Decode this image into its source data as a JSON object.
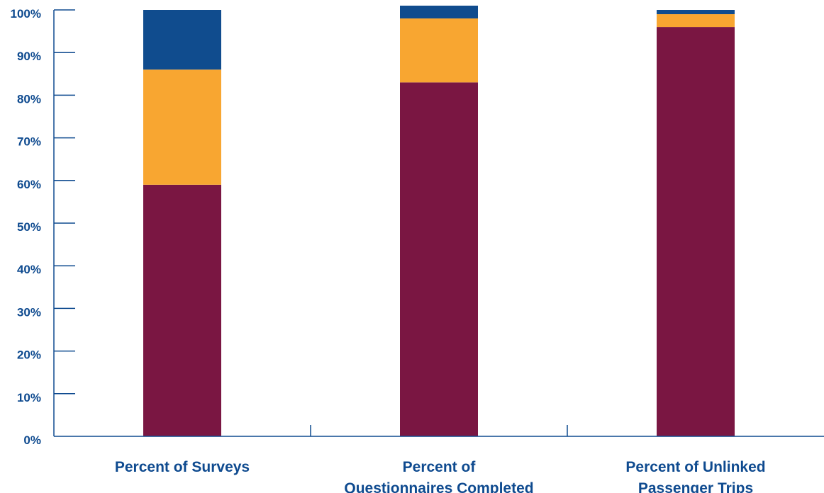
{
  "chart_data": {
    "type": "bar",
    "stacked": true,
    "orientation": "vertical",
    "categories": [
      [
        "Percent of Surveys"
      ],
      [
        "Percent of",
        "Questionnaires Completed"
      ],
      [
        "Percent of Unlinked",
        "Passenger Trips"
      ]
    ],
    "series": [
      {
        "color": "#7a1642",
        "values": [
          59,
          83,
          96
        ]
      },
      {
        "color": "#f8a631",
        "values": [
          27,
          15,
          3
        ]
      },
      {
        "color": "#104c8e",
        "values": [
          14,
          3,
          1
        ]
      }
    ],
    "ylim": [
      0,
      100
    ],
    "yticks": [
      0,
      10,
      20,
      30,
      40,
      50,
      60,
      70,
      80,
      90,
      100
    ],
    "ytick_labels": [
      "0%",
      "10%",
      "20%",
      "30%",
      "40%",
      "50%",
      "60%",
      "70%",
      "80%",
      "90%",
      "100%"
    ],
    "xlabel": "",
    "ylabel": "",
    "title": "",
    "grid": false,
    "legend": "none",
    "colors": {
      "axis": "#0e4a8f",
      "text": "#0e4a8f"
    }
  }
}
